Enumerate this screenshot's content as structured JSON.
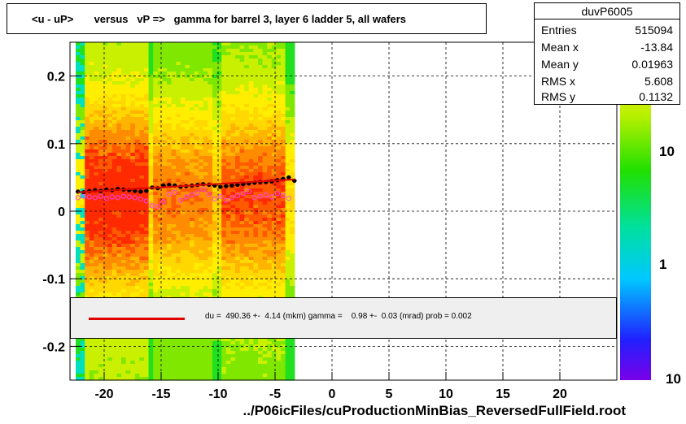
{
  "title": "<u - uP>       versus   vP =>   gamma for barrel 3, layer 6 ladder 5, all wafers",
  "xlabel": "../P06icFiles/cuProductionMinBias_ReversedFullField.root",
  "stats": {
    "name": "duvP6005",
    "rows": [
      {
        "key": "Entries",
        "value": "515094"
      },
      {
        "key": "Mean x",
        "value": "-13.84"
      },
      {
        "key": "Mean y",
        "value": "0.01963"
      },
      {
        "key": "RMS x",
        "value": "5.608"
      },
      {
        "key": "RMS y",
        "value": "0.1132"
      }
    ]
  },
  "fit": {
    "text": "du =  490.36 +-  4.14 (mkm) gamma =    0.98 +-  0.03 (mrad) prob = 0.002",
    "line_color": "#e00000"
  },
  "chart_data": {
    "type": "heatmap",
    "xlim": [
      -23,
      25
    ],
    "ylim": [
      -0.25,
      0.25
    ],
    "x_ticks": [
      -20,
      -15,
      -10,
      -5,
      0,
      5,
      10,
      15,
      20
    ],
    "x_tick_labels": [
      "-20",
      "-15",
      "-10",
      "-5",
      "0",
      "5",
      "10",
      "15",
      "20"
    ],
    "y_ticks": [
      -0.2,
      -0.1,
      0,
      0.1,
      0.2
    ],
    "y_tick_labels": [
      "-0.2",
      "-0.1",
      "0",
      "0.1",
      "0.2"
    ],
    "grid": true,
    "heatmap_x_range": [
      -22.5,
      -3.3
    ],
    "colorbar": {
      "scale": "log",
      "labels": [
        "10",
        "1",
        "10"
      ]
    },
    "series": [
      {
        "marker": "filled-circle",
        "color": "#000000",
        "x": [
          -22.3,
          -21.8,
          -21.3,
          -20.8,
          -20.3,
          -19.8,
          -19.3,
          -18.8,
          -18.3,
          -17.8,
          -17.3,
          -16.8,
          -16.3,
          -15.8,
          -15.3,
          -14.8,
          -14.3,
          -13.8,
          -13.3,
          -12.8,
          -12.3,
          -11.8,
          -11.3,
          -10.8,
          -10.3,
          -9.8,
          -9.3,
          -8.8,
          -8.3,
          -7.8,
          -7.3,
          -6.8,
          -6.3,
          -5.8,
          -5.3,
          -4.8,
          -4.3,
          -3.8,
          -3.3
        ],
        "y": [
          0.029,
          0.028,
          0.03,
          0.031,
          0.03,
          0.032,
          0.031,
          0.033,
          0.032,
          0.031,
          0.03,
          0.029,
          0.03,
          0.035,
          0.034,
          0.038,
          0.039,
          0.038,
          0.036,
          0.037,
          0.038,
          0.039,
          0.04,
          0.039,
          0.038,
          0.036,
          0.037,
          0.038,
          0.039,
          0.04,
          0.041,
          0.042,
          0.043,
          0.043,
          0.044,
          0.046,
          0.048,
          0.05,
          0.045
        ]
      },
      {
        "marker": "open-circle",
        "color": "#ff40ff",
        "x": [
          -22.3,
          -21.8,
          -21.3,
          -20.8,
          -20.3,
          -19.8,
          -19.3,
          -18.8,
          -18.3,
          -17.8,
          -17.3,
          -16.8,
          -16.3,
          -15.8,
          -15.3,
          -14.8,
          -14.3,
          -13.8,
          -13.3,
          -12.8,
          -12.3,
          -11.8,
          -11.3,
          -10.8,
          -10.3,
          -9.8,
          -9.3,
          -8.8,
          -8.3,
          -7.8,
          -7.3,
          -6.8,
          -6.3,
          -5.8,
          -5.3,
          -4.8,
          -4.3,
          -3.8
        ],
        "y": [
          0.02,
          0.022,
          0.021,
          0.02,
          0.022,
          0.019,
          0.021,
          0.02,
          0.022,
          0.021,
          0.02,
          0.018,
          0.015,
          0.008,
          0.007,
          0.014,
          0.025,
          0.028,
          0.016,
          0.021,
          0.024,
          0.027,
          0.032,
          0.025,
          0.018,
          0.022,
          0.016,
          0.02,
          0.023,
          0.026,
          0.029,
          0.02,
          0.022,
          0.024,
          0.021,
          0.026,
          0.023,
          0.019
        ]
      },
      {
        "marker": "line",
        "color": "#e00000",
        "x": [
          -22.3,
          -3.3
        ],
        "y": [
          0.028,
          0.047
        ]
      }
    ]
  }
}
